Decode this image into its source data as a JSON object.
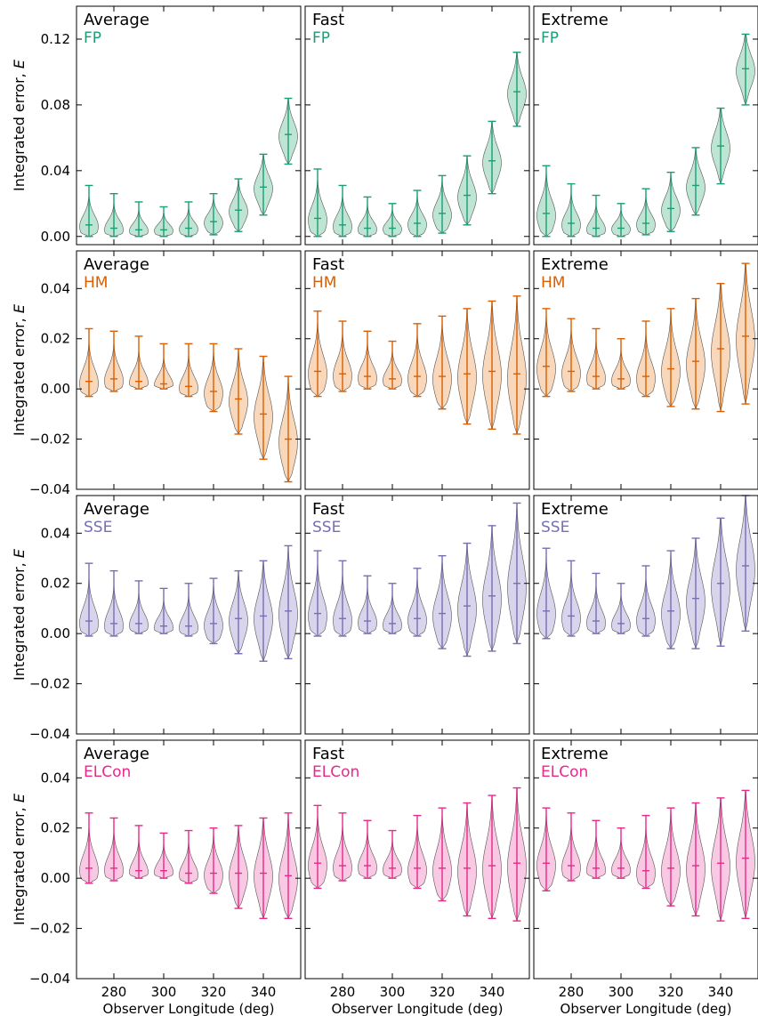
{
  "figure": {
    "ylabel_prefix": "Integrated error, ",
    "ylabel_var": "E",
    "xlabel": "Observer Longitude (deg)"
  },
  "x_ticks": [
    "280",
    "300",
    "320",
    "340"
  ],
  "x_tick_values": [
    280,
    300,
    320,
    340
  ],
  "x_positions": [
    270,
    280,
    290,
    300,
    310,
    320,
    330,
    340,
    350
  ],
  "xlim": [
    265,
    355
  ],
  "columns": [
    "Average",
    "Fast",
    "Extreme"
  ],
  "chart_data": [
    {
      "type": "violin",
      "model": "FP",
      "color": "#1b9e77",
      "fill": "#a8dcc5",
      "ylim": [
        -0.005,
        0.14
      ],
      "y_ticks": [
        "0.00",
        "0.04",
        "0.08",
        "0.12"
      ],
      "y_tick_values": [
        0.0,
        0.04,
        0.08,
        0.12
      ],
      "panels": [
        {
          "scenario": "Average",
          "min": [
            0.0,
            0.0,
            0.0,
            0.0,
            0.0,
            0.001,
            0.003,
            0.013,
            0.044
          ],
          "mean": [
            0.007,
            0.005,
            0.004,
            0.004,
            0.005,
            0.009,
            0.016,
            0.03,
            0.062
          ],
          "max": [
            0.031,
            0.026,
            0.021,
            0.018,
            0.021,
            0.026,
            0.035,
            0.05,
            0.084
          ]
        },
        {
          "scenario": "Fast",
          "min": [
            0.0,
            0.0,
            0.0,
            0.0,
            0.0,
            0.002,
            0.007,
            0.026,
            0.067
          ],
          "mean": [
            0.011,
            0.007,
            0.005,
            0.005,
            0.008,
            0.014,
            0.025,
            0.046,
            0.088
          ],
          "max": [
            0.041,
            0.031,
            0.024,
            0.02,
            0.028,
            0.037,
            0.049,
            0.07,
            0.112
          ]
        },
        {
          "scenario": "Extreme",
          "min": [
            0.0,
            0.0,
            0.0,
            0.0,
            0.001,
            0.003,
            0.013,
            0.032,
            0.08
          ],
          "mean": [
            0.014,
            0.008,
            0.005,
            0.005,
            0.008,
            0.017,
            0.031,
            0.055,
            0.102
          ],
          "max": [
            0.043,
            0.032,
            0.025,
            0.02,
            0.029,
            0.039,
            0.054,
            0.078,
            0.123
          ]
        }
      ]
    },
    {
      "type": "violin",
      "model": "HM",
      "color": "#d95f02",
      "fill": "#f5c9a3",
      "ylim": [
        -0.04,
        0.055
      ],
      "y_ticks": [
        "−0.04",
        "−0.02",
        "0.00",
        "0.02",
        "0.04"
      ],
      "y_tick_values": [
        -0.04,
        -0.02,
        0.0,
        0.02,
        0.04
      ],
      "panels": [
        {
          "scenario": "Average",
          "min": [
            -0.003,
            -0.001,
            0.0,
            0.0,
            -0.003,
            -0.009,
            -0.018,
            -0.028,
            -0.037
          ],
          "mean": [
            0.003,
            0.004,
            0.003,
            0.002,
            0.001,
            -0.001,
            -0.004,
            -0.01,
            -0.02
          ],
          "max": [
            0.024,
            0.023,
            0.021,
            0.018,
            0.018,
            0.018,
            0.016,
            0.013,
            0.005
          ]
        },
        {
          "scenario": "Fast",
          "min": [
            -0.003,
            -0.001,
            0.0,
            0.0,
            -0.003,
            -0.008,
            -0.014,
            -0.016,
            -0.018
          ],
          "mean": [
            0.007,
            0.006,
            0.005,
            0.004,
            0.005,
            0.005,
            0.006,
            0.007,
            0.006
          ],
          "max": [
            0.031,
            0.027,
            0.023,
            0.019,
            0.026,
            0.029,
            0.032,
            0.035,
            0.037
          ]
        },
        {
          "scenario": "Extreme",
          "min": [
            -0.003,
            -0.001,
            0.0,
            0.0,
            -0.003,
            -0.007,
            -0.008,
            -0.009,
            -0.006
          ],
          "mean": [
            0.009,
            0.007,
            0.005,
            0.004,
            0.005,
            0.008,
            0.011,
            0.016,
            0.021
          ],
          "max": [
            0.032,
            0.028,
            0.024,
            0.02,
            0.027,
            0.032,
            0.036,
            0.042,
            0.05
          ]
        }
      ]
    },
    {
      "type": "violin",
      "model": "SSE",
      "color": "#7570b3",
      "fill": "#c9c6e5",
      "ylim": [
        -0.04,
        0.055
      ],
      "y_ticks": [
        "−0.04",
        "−0.02",
        "0.00",
        "0.02",
        "0.04"
      ],
      "y_tick_values": [
        -0.04,
        -0.02,
        0.0,
        0.02,
        0.04
      ],
      "panels": [
        {
          "scenario": "Average",
          "min": [
            -0.001,
            -0.001,
            0.0,
            0.0,
            -0.001,
            -0.004,
            -0.008,
            -0.011,
            -0.01
          ],
          "mean": [
            0.005,
            0.004,
            0.004,
            0.003,
            0.003,
            0.004,
            0.006,
            0.007,
            0.009
          ],
          "max": [
            0.028,
            0.025,
            0.021,
            0.018,
            0.02,
            0.022,
            0.025,
            0.029,
            0.035
          ]
        },
        {
          "scenario": "Fast",
          "min": [
            -0.001,
            -0.001,
            0.0,
            0.0,
            -0.001,
            -0.006,
            -0.009,
            -0.007,
            -0.004
          ],
          "mean": [
            0.008,
            0.006,
            0.005,
            0.004,
            0.006,
            0.008,
            0.011,
            0.015,
            0.02
          ],
          "max": [
            0.033,
            0.029,
            0.023,
            0.02,
            0.026,
            0.031,
            0.036,
            0.043,
            0.052
          ]
        },
        {
          "scenario": "Extreme",
          "min": [
            -0.002,
            -0.001,
            0.0,
            0.0,
            -0.001,
            -0.006,
            -0.006,
            -0.005,
            0.001
          ],
          "mean": [
            0.009,
            0.007,
            0.005,
            0.004,
            0.006,
            0.009,
            0.014,
            0.02,
            0.027
          ],
          "max": [
            0.034,
            0.029,
            0.024,
            0.02,
            0.027,
            0.033,
            0.038,
            0.046,
            0.055
          ]
        }
      ]
    },
    {
      "type": "violin",
      "model": "ELCon",
      "color": "#e7298a",
      "fill": "#f7b6d8",
      "ylim": [
        -0.04,
        0.055
      ],
      "y_ticks": [
        "−0.04",
        "−0.02",
        "0.00",
        "0.02",
        "0.04"
      ],
      "y_tick_values": [
        -0.04,
        -0.02,
        0.0,
        0.02,
        0.04
      ],
      "panels": [
        {
          "scenario": "Average",
          "min": [
            -0.002,
            -0.001,
            0.0,
            0.0,
            -0.002,
            -0.006,
            -0.012,
            -0.016,
            -0.016
          ],
          "mean": [
            0.004,
            0.004,
            0.003,
            0.003,
            0.002,
            0.002,
            0.002,
            0.002,
            0.001
          ],
          "max": [
            0.026,
            0.024,
            0.021,
            0.018,
            0.019,
            0.02,
            0.021,
            0.024,
            0.026
          ]
        },
        {
          "scenario": "Fast",
          "min": [
            -0.004,
            -0.001,
            0.0,
            0.0,
            -0.004,
            -0.009,
            -0.015,
            -0.016,
            -0.017
          ],
          "mean": [
            0.006,
            0.005,
            0.005,
            0.004,
            0.004,
            0.004,
            0.004,
            0.005,
            0.006
          ],
          "max": [
            0.029,
            0.026,
            0.023,
            0.019,
            0.025,
            0.028,
            0.03,
            0.033,
            0.036
          ]
        },
        {
          "scenario": "Extreme",
          "min": [
            -0.005,
            -0.001,
            0.0,
            0.0,
            -0.004,
            -0.011,
            -0.015,
            -0.017,
            -0.016
          ],
          "mean": [
            0.006,
            0.005,
            0.004,
            0.004,
            0.003,
            0.004,
            0.005,
            0.006,
            0.008
          ],
          "max": [
            0.028,
            0.026,
            0.023,
            0.02,
            0.025,
            0.028,
            0.03,
            0.032,
            0.035
          ]
        }
      ]
    }
  ]
}
